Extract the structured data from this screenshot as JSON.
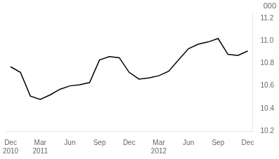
{
  "chart_data": {
    "type": "line",
    "ylabel": "000",
    "categories": [
      "Dec\n2010",
      null,
      null,
      "Mar\n2011",
      null,
      null,
      "Jun",
      null,
      null,
      "Sep",
      null,
      null,
      "Dec",
      null,
      null,
      "Mar\n2012",
      null,
      null,
      "Jun",
      null,
      null,
      "Sep",
      null,
      null,
      "Dec"
    ],
    "values": [
      10.77,
      10.72,
      10.51,
      10.48,
      10.52,
      10.57,
      10.6,
      10.61,
      10.63,
      10.83,
      10.86,
      10.85,
      10.72,
      10.66,
      10.67,
      10.69,
      10.73,
      10.83,
      10.93,
      10.97,
      10.99,
      11.02,
      10.88,
      10.87,
      10.91
    ],
    "color": "#000000",
    "ylim": [
      10.2,
      11.25
    ],
    "yticks": [
      10.2,
      10.4,
      10.6,
      10.8,
      {
        "value": 11.0,
        "label": "11.0"
      },
      11.2
    ],
    "grid": false
  }
}
